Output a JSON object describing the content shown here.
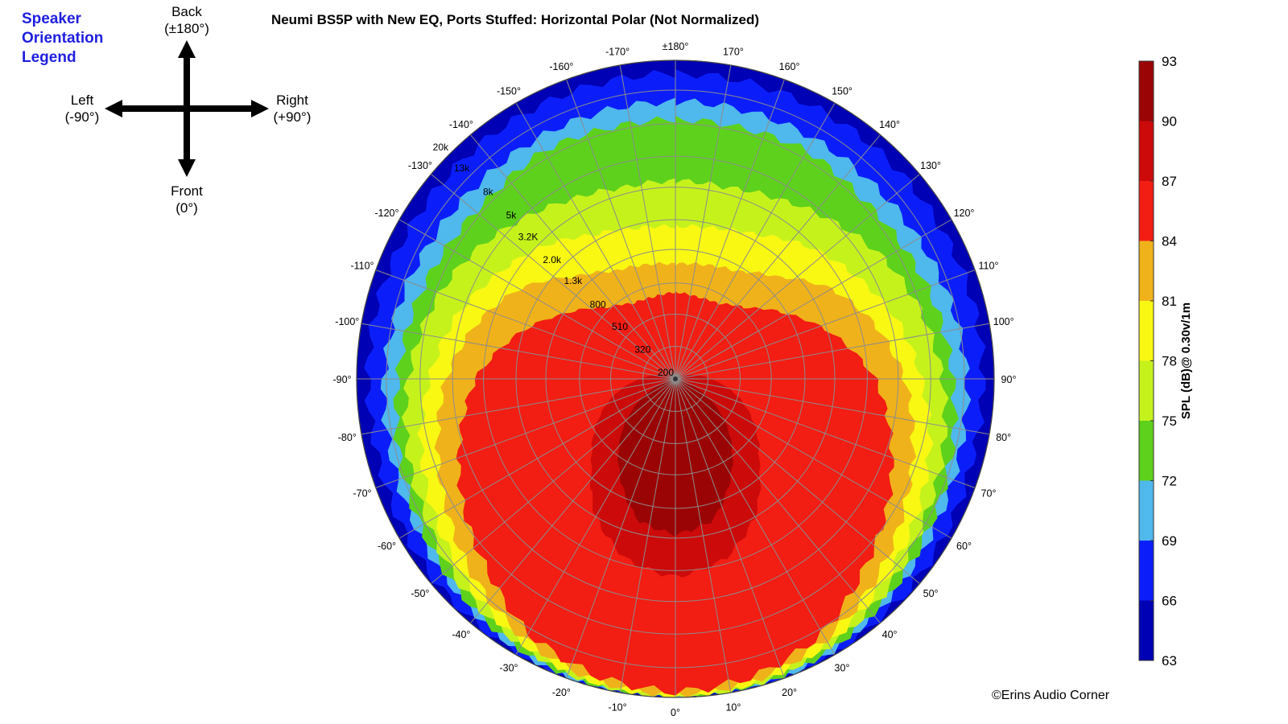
{
  "legend": {
    "title_lines": [
      "Speaker",
      "Orientation",
      "Legend"
    ],
    "back": "Back",
    "back_sub": "(±180°)",
    "left": "Left",
    "left_sub": "(-90°)",
    "right": "Right",
    "right_sub": "(+90°)",
    "front": "Front",
    "front_sub": "(0°)"
  },
  "copyright": "©Erins Audio Corner",
  "chart_data": {
    "type": "heatmap",
    "subtype": "polar-contour",
    "title": "Neumi BS5P with New EQ, Ports Stuffed: Horizontal Polar (Not Normalized)",
    "angle_unit": "degrees",
    "angle_ticks": [
      0,
      10,
      20,
      30,
      40,
      50,
      60,
      70,
      80,
      90,
      100,
      110,
      120,
      130,
      140,
      150,
      160,
      170,
      180,
      -170,
      -160,
      -150,
      -140,
      -130,
      -120,
      -110,
      -100,
      -90,
      -80,
      -70,
      -60,
      -50,
      -40,
      -30,
      -20,
      -10
    ],
    "angle_labels": [
      "0°",
      "10°",
      "20°",
      "30°",
      "40°",
      "50°",
      "60°",
      "70°",
      "80°",
      "90°",
      "100°",
      "110°",
      "120°",
      "130°",
      "140°",
      "150°",
      "160°",
      "170°",
      "±180°",
      "-170°",
      "-160°",
      "-150°",
      "-140°",
      "-130°",
      "-120°",
      "-110°",
      "-100°",
      "-90°",
      "-80°",
      "-70°",
      "-60°",
      "-50°",
      "-40°",
      "-30°",
      "-20°",
      "-10°"
    ],
    "front_direction": "bottom",
    "radial_axis": "frequency",
    "radial_scale": "log",
    "radial_range": [
      200,
      20000
    ],
    "radial_ticks": [
      200,
      320,
      510,
      800,
      1300,
      2000,
      3200,
      5000,
      8000,
      13000,
      20000
    ],
    "radial_tick_labels": [
      "200",
      "320",
      "510",
      "800",
      "1.3k",
      "2.0k",
      "3.2K",
      "5k",
      "8k",
      "13k",
      "20k"
    ],
    "colorbar": {
      "label": "SPL (dB)@ 0.30v/1m",
      "range": [
        63,
        93
      ],
      "ticks": [
        63,
        66,
        69,
        72,
        75,
        78,
        81,
        84,
        87,
        90,
        93
      ],
      "levels": [
        {
          "from": 63,
          "to": 66,
          "color": "#0000b4"
        },
        {
          "from": 66,
          "to": 69,
          "color": "#0b1efa"
        },
        {
          "from": 69,
          "to": 72,
          "color": "#4fb8ec"
        },
        {
          "from": 72,
          "to": 75,
          "color": "#5ed11c"
        },
        {
          "from": 75,
          "to": 78,
          "color": "#c6f21c"
        },
        {
          "from": 78,
          "to": 81,
          "color": "#f8f813"
        },
        {
          "from": 81,
          "to": 84,
          "color": "#f0b21a"
        },
        {
          "from": 84,
          "to": 87,
          "color": "#f21d13"
        },
        {
          "from": 87,
          "to": 90,
          "color": "#cc0a0a"
        },
        {
          "from": 90,
          "to": 93,
          "color": "#9b0404"
        }
      ]
    },
    "contour_boundaries_hz": [
      {
        "level": 66,
        "angles": [
          0,
          15,
          30,
          45,
          60,
          75,
          90,
          105,
          120,
          135,
          150,
          165,
          180
        ],
        "freq": [
          20000,
          20000,
          19500,
          19000,
          18000,
          17000,
          17000,
          17000,
          16500,
          16500,
          16500,
          16500,
          16500
        ]
      },
      {
        "level": 69,
        "angles": [
          0,
          15,
          30,
          45,
          60,
          75,
          90,
          105,
          120,
          135,
          150,
          165,
          180
        ],
        "freq": [
          20000,
          19600,
          18500,
          16500,
          15000,
          14000,
          13500,
          12500,
          11500,
          11000,
          11000,
          11000,
          11000
        ]
      },
      {
        "level": 72,
        "angles": [
          0,
          15,
          30,
          45,
          60,
          75,
          90,
          105,
          120,
          135,
          150,
          165,
          180
        ],
        "freq": [
          20000,
          19200,
          18000,
          16000,
          14000,
          12500,
          11000,
          10000,
          9000,
          8500,
          9000,
          8500,
          8500
        ]
      },
      {
        "level": 75,
        "angles": [
          0,
          15,
          30,
          45,
          60,
          75,
          90,
          105,
          120,
          135,
          150,
          165,
          180
        ],
        "freq": [
          20000,
          19000,
          17000,
          15000,
          12500,
          11000,
          9500,
          8000,
          6500,
          5000,
          4000,
          3500,
          3500
        ]
      },
      {
        "level": 78,
        "angles": [
          0,
          15,
          30,
          45,
          60,
          75,
          90,
          105,
          120,
          135,
          150,
          165,
          180
        ],
        "freq": [
          19500,
          18500,
          16500,
          13500,
          11000,
          9000,
          7000,
          5500,
          4000,
          3000,
          2200,
          1900,
          1800
        ]
      },
      {
        "level": 81,
        "angles": [
          0,
          15,
          30,
          45,
          60,
          75,
          90,
          105,
          120,
          135,
          150,
          165,
          180
        ],
        "freq": [
          19000,
          18000,
          15500,
          12000,
          9000,
          7000,
          5500,
          4000,
          2700,
          1600,
          1200,
          1100,
          1050
        ]
      },
      {
        "level": 84,
        "angles": [
          0,
          15,
          30,
          45,
          60,
          75,
          90,
          105,
          120,
          135,
          150,
          165,
          180
        ],
        "freq": [
          18500,
          17000,
          14000,
          9500,
          7000,
          5000,
          3600,
          2200,
          1300,
          850,
          700,
          680,
          700
        ]
      },
      {
        "level": 87,
        "angles": [
          0,
          15,
          30,
          45,
          60,
          75,
          90,
          105,
          120,
          135,
          150,
          165,
          180
        ],
        "freq": [
          3500,
          3000,
          2000,
          1100,
          750,
          500,
          330,
          250,
          220,
          210,
          210,
          210,
          210
        ]
      },
      {
        "level": 90,
        "angles": [
          0,
          15,
          30,
          45,
          60,
          75,
          90,
          105,
          120,
          135,
          150,
          165,
          180
        ],
        "freq": [
          1900,
          1650,
          1000,
          600,
          350,
          210,
          200,
          200,
          200,
          200,
          200,
          200,
          200
        ]
      }
    ],
    "grid": true
  }
}
